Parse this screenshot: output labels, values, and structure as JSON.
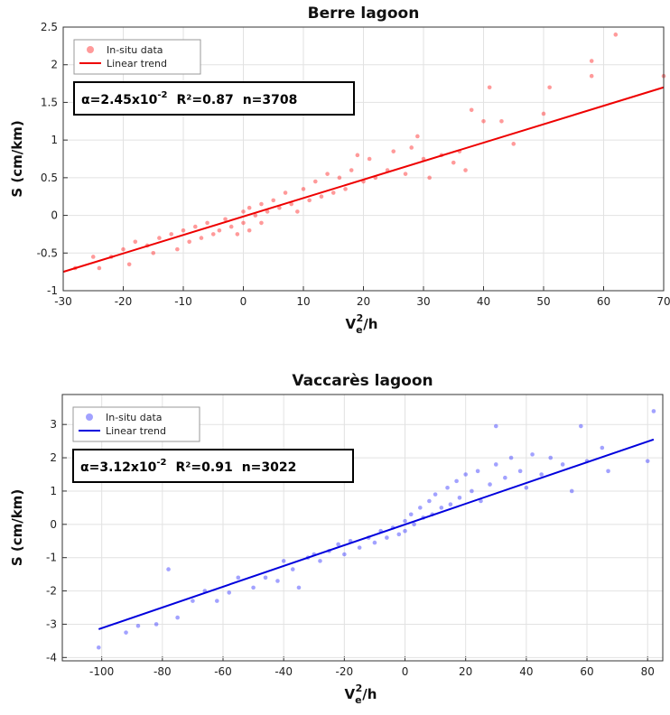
{
  "chart_data": [
    {
      "type": "scatter",
      "title": "Berre lagoon",
      "xlabel": [
        "V",
        "e",
        "2",
        "/h"
      ],
      "ylabel": "S (cm/km)",
      "xlim": [
        -30,
        70
      ],
      "ylim": [
        -1,
        2.5
      ],
      "xticks": [
        -30,
        -20,
        -10,
        0,
        10,
        20,
        30,
        40,
        50,
        60,
        70
      ],
      "yticks": [
        -1,
        -0.5,
        0,
        0.5,
        1,
        1.5,
        2,
        2.5
      ],
      "grid": true,
      "legend": "upper left",
      "annotation": [
        "α=2.45x10",
        "-2",
        "R²=0.87",
        "n=3708"
      ],
      "series": [
        {
          "name": "In-situ data",
          "color": "#ff2020",
          "x": [
            -28,
            -25,
            -24,
            -22,
            -20,
            -19,
            -18,
            -16,
            -15,
            -14,
            -12,
            -11,
            -10,
            -9,
            -8,
            -7,
            -6,
            -5,
            -4,
            -3,
            -2,
            -1,
            0,
            0,
            1,
            1,
            2,
            3,
            3,
            4,
            5,
            6,
            7,
            8,
            9,
            10,
            11,
            12,
            13,
            14,
            15,
            16,
            17,
            18,
            20,
            21,
            22,
            24,
            25,
            27,
            28,
            30,
            31,
            33,
            35,
            37,
            38,
            40,
            41,
            43,
            50,
            51,
            58,
            58,
            62,
            70,
            45,
            36,
            29,
            19
          ],
          "values": [
            -0.7,
            -0.55,
            -0.7,
            -0.55,
            -0.45,
            -0.65,
            -0.35,
            -0.4,
            -0.5,
            -0.3,
            -0.25,
            -0.45,
            -0.2,
            -0.35,
            -0.15,
            -0.3,
            -0.1,
            -0.25,
            -0.2,
            -0.05,
            -0.15,
            -0.25,
            -0.1,
            0.05,
            -0.2,
            0.1,
            0,
            0.15,
            -0.1,
            0.05,
            0.2,
            0.1,
            0.3,
            0.15,
            0.05,
            0.35,
            0.2,
            0.45,
            0.25,
            0.55,
            0.3,
            0.5,
            0.35,
            0.6,
            0.45,
            0.75,
            0.5,
            0.6,
            0.85,
            0.55,
            0.9,
            0.75,
            0.5,
            0.8,
            0.7,
            0.6,
            1.4,
            1.25,
            1.7,
            1.25,
            1.35,
            1.7,
            1.85,
            2.05,
            2.4,
            1.85,
            0.95,
            0.85,
            1.05,
            0.8
          ]
        },
        {
          "name": "Linear trend",
          "type": "line",
          "color": "#ee0000",
          "x": [
            -30,
            70
          ],
          "values": [
            -0.75,
            1.7
          ]
        }
      ]
    },
    {
      "type": "scatter",
      "title": "Vaccarès lagoon",
      "xlabel": [
        "V",
        "e",
        "2",
        "/h"
      ],
      "ylabel": "S (cm/km)",
      "xlim": [
        -113,
        85
      ],
      "ylim": [
        -4.1,
        3.9
      ],
      "xticks": [
        -100,
        -80,
        -60,
        -40,
        -20,
        0,
        20,
        40,
        60,
        80
      ],
      "yticks": [
        -4,
        -3,
        -2,
        -1,
        0,
        1,
        2,
        3
      ],
      "grid": true,
      "legend": "upper left",
      "annotation": [
        "α=3.12x10",
        "-2",
        "R²=0.91",
        "n=3022"
      ],
      "series": [
        {
          "name": "In-situ data",
          "color": "#3030ff",
          "x": [
            -101,
            -92,
            -88,
            -82,
            -78,
            -75,
            -70,
            -66,
            -62,
            -58,
            -55,
            -50,
            -46,
            -42,
            -40,
            -37,
            -35,
            -32,
            -30,
            -28,
            -25,
            -22,
            -20,
            -18,
            -15,
            -12,
            -10,
            -8,
            -6,
            -4,
            -2,
            0,
            0,
            2,
            3,
            5,
            6,
            8,
            9,
            10,
            12,
            14,
            15,
            17,
            18,
            20,
            22,
            24,
            25,
            28,
            30,
            30,
            33,
            35,
            38,
            40,
            42,
            45,
            48,
            52,
            55,
            58,
            60,
            65,
            67,
            80,
            82
          ],
          "values": [
            -3.7,
            -3.25,
            -3.05,
            -3.0,
            -1.35,
            -2.8,
            -2.3,
            -2.0,
            -2.3,
            -2.05,
            -1.6,
            -1.9,
            -1.6,
            -1.7,
            -1.1,
            -1.35,
            -1.9,
            -1.0,
            -0.9,
            -1.1,
            -0.8,
            -0.6,
            -0.9,
            -0.5,
            -0.7,
            -0.4,
            -0.55,
            -0.2,
            -0.4,
            -0.1,
            -0.3,
            0.1,
            -0.2,
            0.3,
            0,
            0.5,
            0.2,
            0.7,
            0.3,
            0.9,
            0.5,
            1.1,
            0.6,
            1.3,
            0.8,
            1.5,
            1.0,
            1.6,
            0.7,
            1.2,
            2.95,
            1.8,
            1.4,
            2.0,
            1.6,
            1.1,
            2.1,
            1.5,
            2.0,
            1.8,
            1.0,
            2.95,
            1.9,
            2.3,
            1.6,
            1.9,
            3.4
          ]
        },
        {
          "name": "Linear trend",
          "type": "line",
          "color": "#0000dd",
          "x": [
            -101,
            82
          ],
          "values": [
            -3.15,
            2.55
          ]
        }
      ]
    }
  ]
}
